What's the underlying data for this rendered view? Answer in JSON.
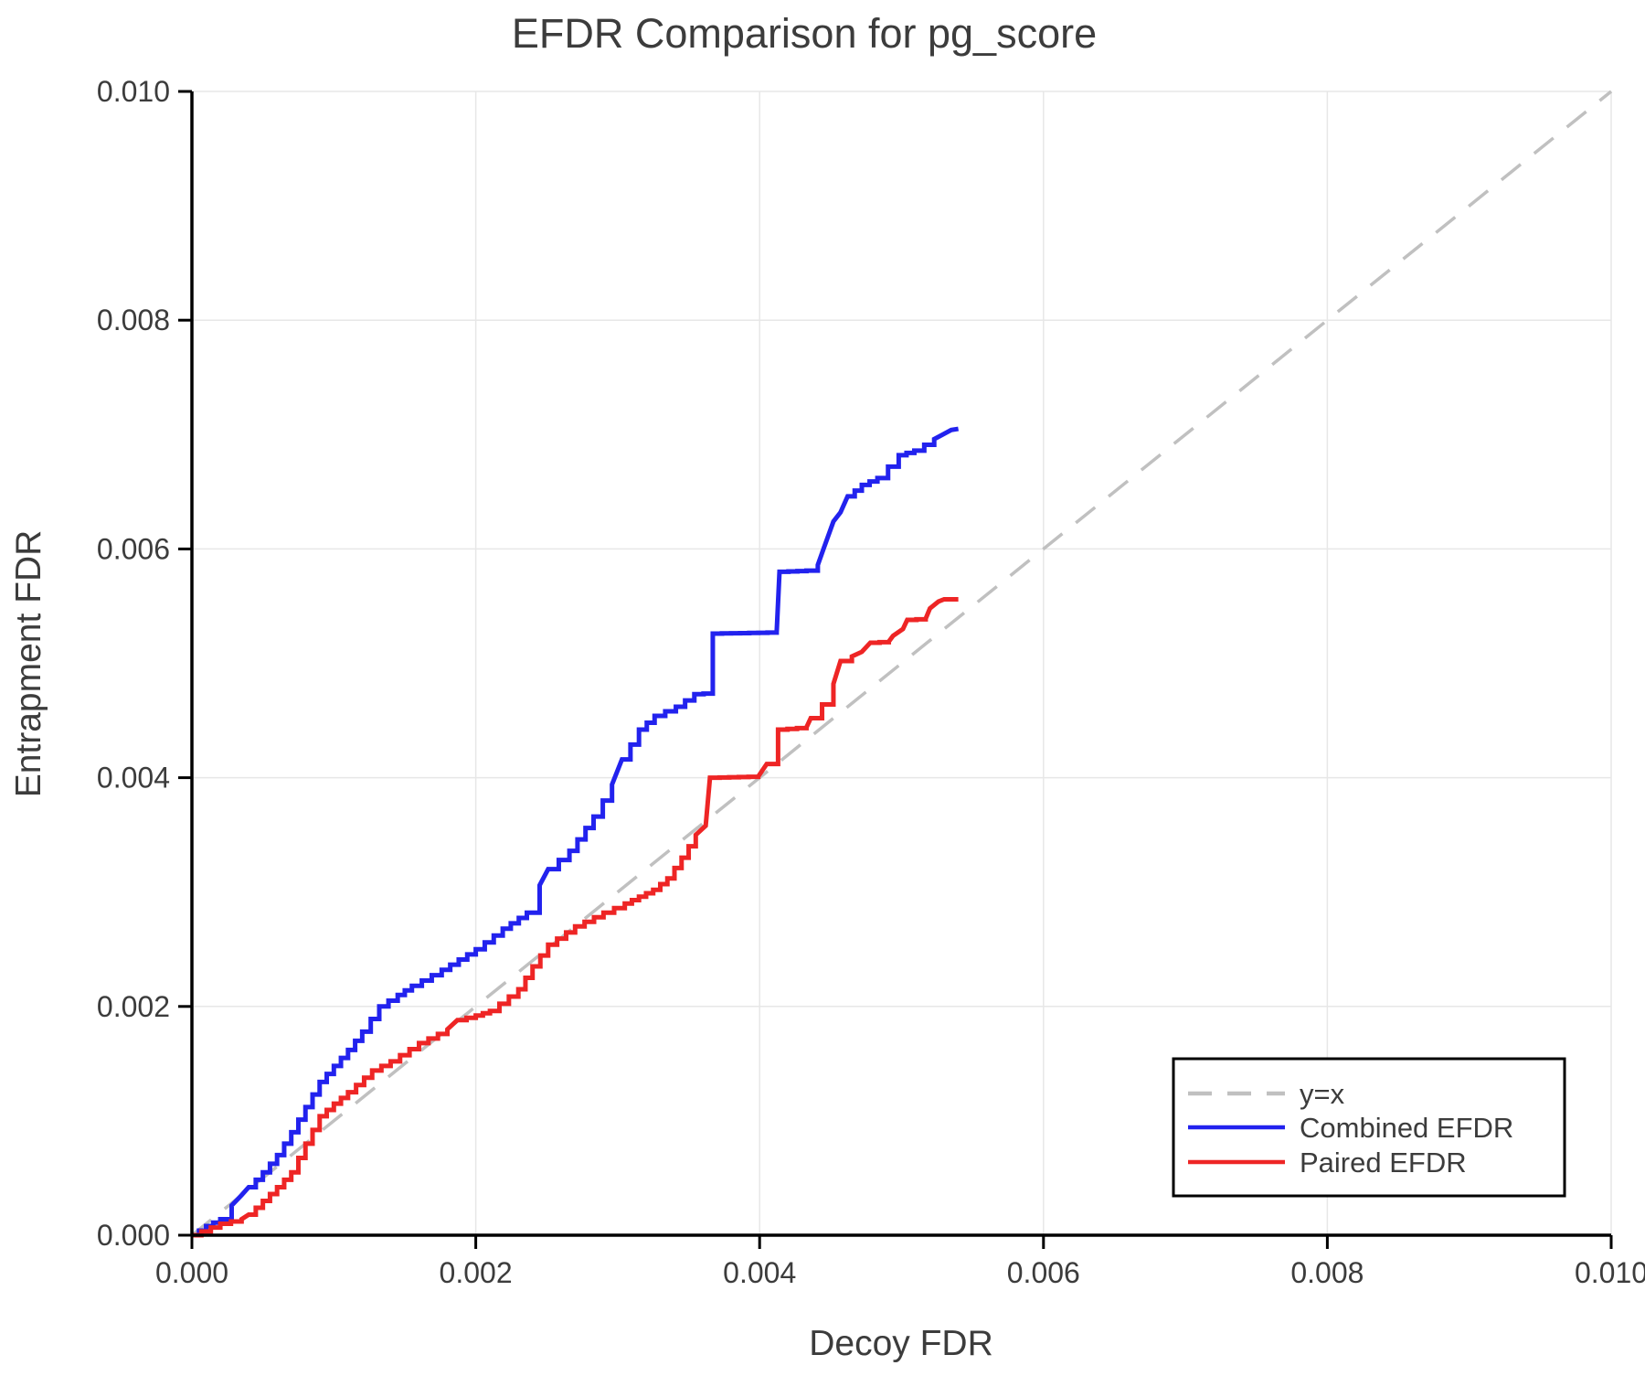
{
  "title": "EFDR Comparison for pg_score",
  "axes": {
    "x": {
      "label": "Decoy FDR",
      "ticks": [
        "0.000",
        "0.002",
        "0.004",
        "0.006",
        "0.008",
        "0.010"
      ],
      "tick_values": [
        0,
        0.002,
        0.004,
        0.006,
        0.008,
        0.01
      ],
      "range": [
        0,
        0.01
      ]
    },
    "y": {
      "label": "Entrapment FDR",
      "ticks": [
        "0.000",
        "0.002",
        "0.004",
        "0.006",
        "0.008",
        "0.010"
      ],
      "tick_values": [
        0,
        0.002,
        0.004,
        0.006,
        0.008,
        0.01
      ],
      "range": [
        0,
        0.01
      ]
    }
  },
  "legend": {
    "position": "lower right",
    "entries": [
      {
        "label": "y=x",
        "color": "#c0c0c0",
        "dashed": true
      },
      {
        "label": "Combined EFDR",
        "color": "#2222ee",
        "dashed": false
      },
      {
        "label": "Paired EFDR",
        "color": "#ee2525",
        "dashed": false
      }
    ]
  },
  "colors": {
    "grid": "#e7e7e7",
    "spine": "#000000",
    "text": "#3c3c3c",
    "background": "#ffffff",
    "reference_line": "#c0c0c0",
    "combined": "#2222ee",
    "paired": "#ee2525"
  },
  "chart_data": {
    "type": "line",
    "title": "EFDR Comparison for pg_score",
    "xlabel": "Decoy FDR",
    "ylabel": "Entrapment FDR",
    "xlim": [
      0,
      0.01
    ],
    "ylim": [
      0,
      0.01
    ],
    "grid": true,
    "legend_position": "lower right",
    "series": [
      {
        "name": "y=x",
        "style": "dashed",
        "color": "#c0c0c0",
        "points": [
          [
            0,
            0
          ],
          [
            0.01,
            0.01
          ]
        ]
      },
      {
        "name": "Combined EFDR",
        "style": "step",
        "color": "#2222ee",
        "points": [
          [
            0,
            0
          ],
          [
            0.0001,
            8e-05
          ],
          [
            0.0002,
            0.00014
          ],
          [
            0.00028,
            0.00026
          ],
          [
            0.00035,
            0.00035
          ],
          [
            0.0004,
            0.00042
          ],
          [
            0.0005,
            0.00055
          ],
          [
            0.0006,
            0.0007
          ],
          [
            0.0007,
            0.0009
          ],
          [
            0.0008,
            0.00112
          ],
          [
            0.0009,
            0.00134
          ],
          [
            0.001,
            0.00148
          ],
          [
            0.0011,
            0.00162
          ],
          [
            0.0012,
            0.00178
          ],
          [
            0.00132,
            0.002
          ],
          [
            0.00145,
            0.0021
          ],
          [
            0.00155,
            0.00218
          ],
          [
            0.00176,
            0.00232
          ],
          [
            0.002,
            0.0025
          ],
          [
            0.00219,
            0.00268
          ],
          [
            0.00236,
            0.00282
          ],
          [
            0.00245,
            0.00306
          ],
          [
            0.00251,
            0.0032
          ],
          [
            0.00266,
            0.00336
          ],
          [
            0.00283,
            0.00366
          ],
          [
            0.00296,
            0.00394
          ],
          [
            0.00303,
            0.00416
          ],
          [
            0.00315,
            0.00442
          ],
          [
            0.00326,
            0.00454
          ],
          [
            0.00341,
            0.00462
          ],
          [
            0.00354,
            0.00473
          ],
          [
            0.00367,
            0.00474
          ],
          [
            0.00367,
            0.00526
          ],
          [
            0.00412,
            0.00527
          ],
          [
            0.00414,
            0.0058
          ],
          [
            0.00433,
            0.00581
          ],
          [
            0.00441,
            0.00586
          ],
          [
            0.00445,
            0.006
          ],
          [
            0.00452,
            0.00624
          ],
          [
            0.00457,
            0.00632
          ],
          [
            0.00462,
            0.00646
          ],
          [
            0.00472,
            0.00656
          ],
          [
            0.00483,
            0.00662
          ],
          [
            0.00498,
            0.00682
          ],
          [
            0.00509,
            0.00686
          ],
          [
            0.00523,
            0.00696
          ],
          [
            0.00529,
            0.007
          ],
          [
            0.00535,
            0.00704
          ],
          [
            0.0054,
            0.00705
          ]
        ]
      },
      {
        "name": "Paired EFDR",
        "style": "step",
        "color": "#ee2525",
        "points": [
          [
            0,
            0
          ],
          [
            0.0002,
            0.0001
          ],
          [
            0.00035,
            0.00014
          ],
          [
            0.0004,
            0.00018
          ],
          [
            0.0005,
            0.0003
          ],
          [
            0.0006,
            0.00042
          ],
          [
            0.0007,
            0.00055
          ],
          [
            0.0008,
            0.0008
          ],
          [
            0.0009,
            0.00104
          ],
          [
            0.001,
            0.00115
          ],
          [
            0.0011,
            0.00125
          ],
          [
            0.00127,
            0.00144
          ],
          [
            0.0014,
            0.00152
          ],
          [
            0.0016,
            0.00168
          ],
          [
            0.0018,
            0.0018
          ],
          [
            0.00187,
            0.00188
          ],
          [
            0.002,
            0.00192
          ],
          [
            0.0021,
            0.00196
          ],
          [
            0.0023,
            0.00215
          ],
          [
            0.0024,
            0.00235
          ],
          [
            0.00251,
            0.00254
          ],
          [
            0.0027,
            0.0027
          ],
          [
            0.0029,
            0.00282
          ],
          [
            0.00305,
            0.0029
          ],
          [
            0.00315,
            0.00296
          ],
          [
            0.00325,
            0.00302
          ],
          [
            0.00335,
            0.00312
          ],
          [
            0.00345,
            0.0033
          ],
          [
            0.00355,
            0.0035
          ],
          [
            0.00362,
            0.00358
          ],
          [
            0.00365,
            0.004
          ],
          [
            0.00399,
            0.00401
          ],
          [
            0.00405,
            0.00412
          ],
          [
            0.00413,
            0.00442
          ],
          [
            0.00433,
            0.00444
          ],
          [
            0.00436,
            0.00452
          ],
          [
            0.00444,
            0.00464
          ],
          [
            0.00452,
            0.00482
          ],
          [
            0.00457,
            0.00502
          ],
          [
            0.00465,
            0.00506
          ],
          [
            0.00472,
            0.0051
          ],
          [
            0.00478,
            0.00518
          ],
          [
            0.00491,
            0.00519
          ],
          [
            0.00494,
            0.00524
          ],
          [
            0.00501,
            0.0053
          ],
          [
            0.00504,
            0.00538
          ],
          [
            0.00517,
            0.00539
          ],
          [
            0.0052,
            0.00548
          ],
          [
            0.00526,
            0.00554
          ],
          [
            0.0053,
            0.00556
          ],
          [
            0.0054,
            0.00556
          ]
        ]
      }
    ]
  }
}
